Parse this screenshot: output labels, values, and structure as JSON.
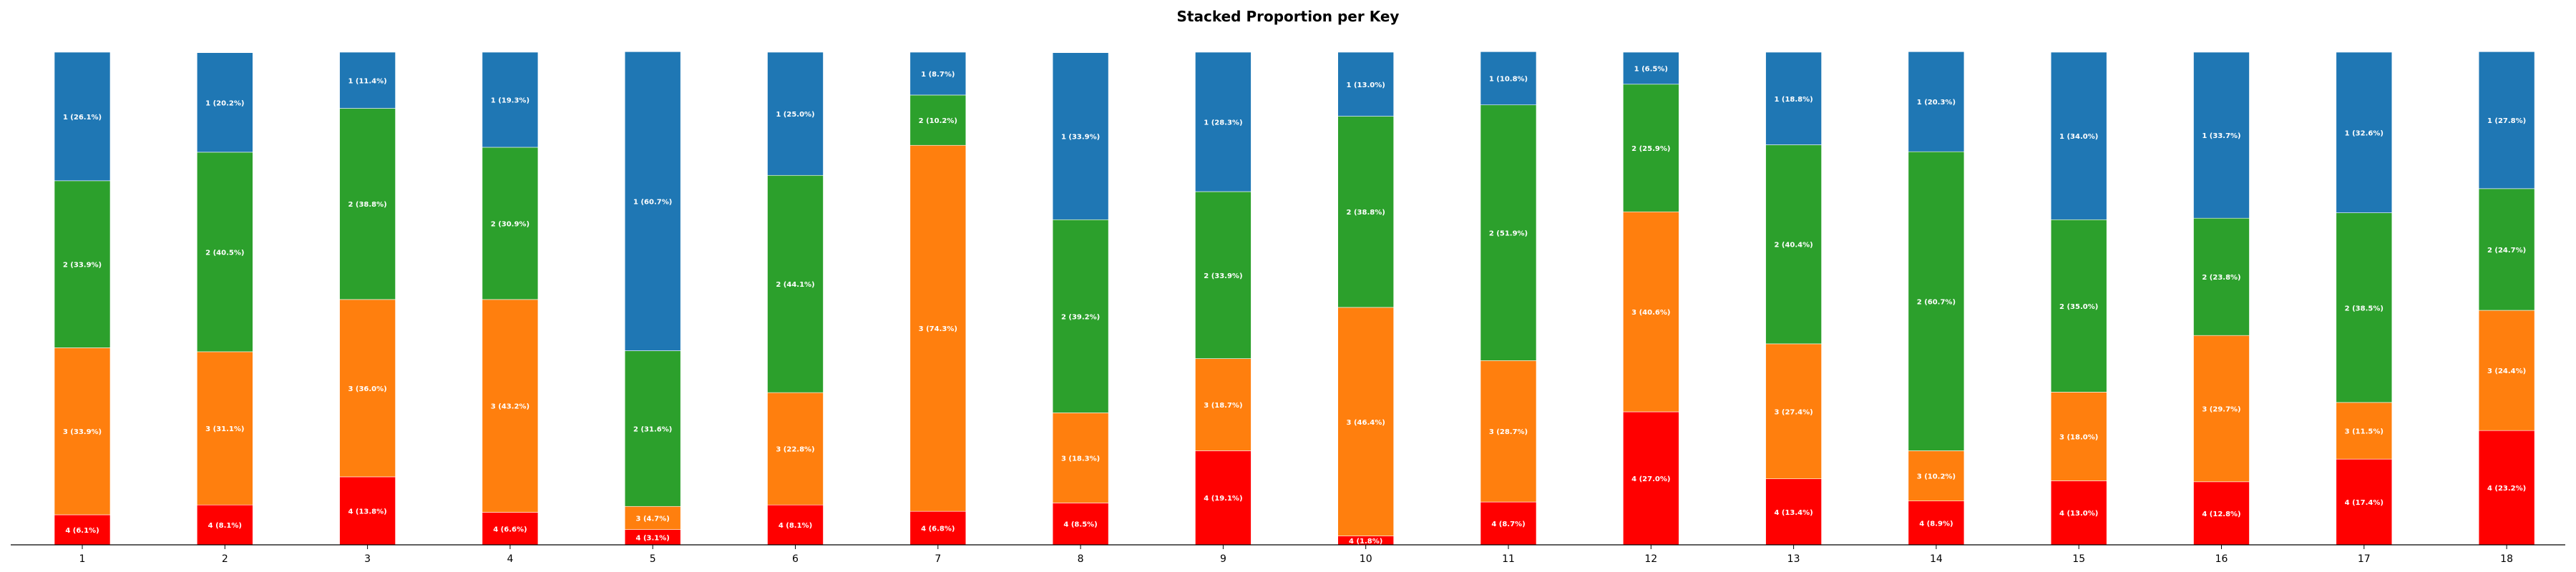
{
  "chart_data": {
    "type": "bar",
    "stacked": true,
    "title": "Stacked Proportion per Key",
    "xlabel": "",
    "ylabel": "",
    "categories": [
      "1",
      "2",
      "3",
      "4",
      "5",
      "6",
      "7",
      "8",
      "9",
      "10",
      "11",
      "12",
      "13",
      "14",
      "15",
      "16",
      "17",
      "18"
    ],
    "ylim": [
      0,
      100
    ],
    "grid": false,
    "legend": "none",
    "series": [
      {
        "key": "4",
        "color": "#ff0000",
        "values": [
          6.1,
          8.1,
          13.8,
          6.6,
          3.1,
          8.1,
          6.8,
          8.5,
          19.1,
          1.8,
          8.7,
          27.0,
          13.4,
          8.9,
          13.0,
          12.8,
          17.4,
          23.2
        ],
        "labels": [
          "4 (6.1%)",
          "4 (8.1%)",
          "4 (13.8%)",
          "4 (6.6%)",
          "4 (3.1%)",
          "4 (8.1%)",
          "4 (6.8%)",
          "4 (8.5%)",
          "4 (19.1%)",
          "4 (1.8%)",
          "4 (8.7%)",
          "4 (27.0%)",
          "4 (13.4%)",
          "4 (8.9%)",
          "4 (13.0%)",
          "4 (12.8%)",
          "4 (17.4%)",
          "4 (23.2%)"
        ]
      },
      {
        "key": "3",
        "color": "#ff7f0e",
        "values": [
          33.9,
          31.1,
          36.0,
          43.2,
          4.7,
          22.8,
          74.3,
          18.3,
          18.7,
          46.4,
          28.7,
          40.6,
          27.4,
          10.2,
          18.0,
          29.7,
          11.5,
          24.4
        ],
        "labels": [
          "3 (33.9%)",
          "3 (31.1%)",
          "3 (36.0%)",
          "3 (43.2%)",
          "3 (4.7%)",
          "3 (22.8%)",
          "3 (74.3%)",
          "3 (18.3%)",
          "3 (18.7%)",
          "3 (46.4%)",
          "3 (28.7%)",
          "3 (40.6%)",
          "3 (27.4%)",
          "3 (10.2%)",
          "3 (18.0%)",
          "3 (29.7%)",
          "3 (11.5%)",
          "3 (24.4%)"
        ]
      },
      {
        "key": "2",
        "color": "#2ca02c",
        "values": [
          33.9,
          40.5,
          38.8,
          30.9,
          31.6,
          44.1,
          10.2,
          39.2,
          33.9,
          38.8,
          51.9,
          25.9,
          40.4,
          60.7,
          35.0,
          23.8,
          38.5,
          24.7
        ],
        "labels": [
          "2 (33.9%)",
          "2 (40.5%)",
          "2 (38.8%)",
          "2 (30.9%)",
          "2 (31.6%)",
          "2 (44.1%)",
          "2 (10.2%)",
          "2 (39.2%)",
          "2 (33.9%)",
          "2 (38.8%)",
          "2 (51.9%)",
          "2 (25.9%)",
          "2 (40.4%)",
          "2 (60.7%)",
          "2 (35.0%)",
          "2 (23.8%)",
          "2 (38.5%)",
          "2 (24.7%)"
        ]
      },
      {
        "key": "1",
        "color": "#1f77b4",
        "values": [
          26.1,
          20.2,
          11.4,
          19.3,
          60.7,
          25.0,
          8.7,
          33.9,
          28.3,
          13.0,
          10.8,
          6.5,
          18.8,
          20.3,
          34.0,
          33.7,
          32.6,
          27.8
        ],
        "labels": [
          "1 (26.1%)",
          "1 (20.2%)",
          "1 (11.4%)",
          "1 (19.3%)",
          "1 (60.7%)",
          "1 (25.0%)",
          "1 (8.7%)",
          "1 (33.9%)",
          "1 (28.3%)",
          "1 (13.0%)",
          "1 (10.8%)",
          "1 (6.5%)",
          "1 (18.8%)",
          "1 (20.3%)",
          "1 (34.0%)",
          "1 (33.7%)",
          "1 (32.6%)",
          "1 (27.8%)"
        ]
      }
    ]
  }
}
